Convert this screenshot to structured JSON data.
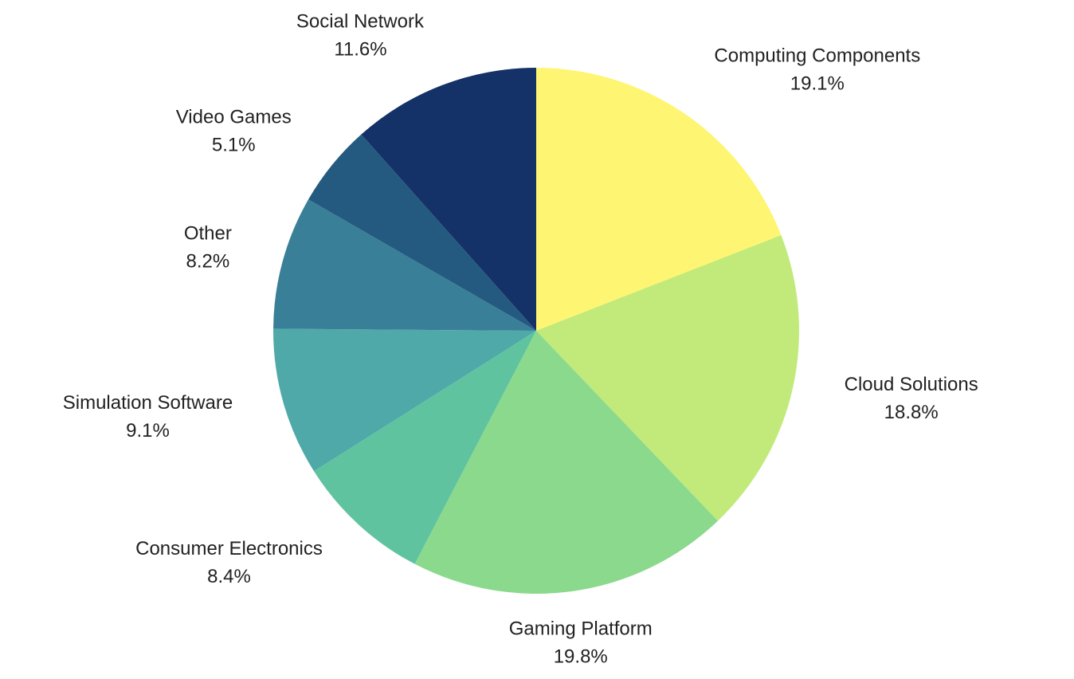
{
  "chart_data": {
    "type": "pie",
    "categories": [
      "Computing Components",
      "Cloud Solutions",
      "Gaming Platform",
      "Consumer Electronics",
      "Simulation Software",
      "Other",
      "Video Games",
      "Social Network"
    ],
    "values": [
      19.1,
      18.8,
      19.8,
      8.4,
      9.1,
      8.2,
      5.1,
      11.6
    ],
    "value_labels": [
      "19.1%",
      "18.8%",
      "19.8%",
      "8.4%",
      "9.1%",
      "8.2%",
      "5.1%",
      "11.6%"
    ],
    "colors": [
      "#fef572",
      "#c1ea7a",
      "#8bd98c",
      "#5fc3a0",
      "#4ea9a8",
      "#3a7f98",
      "#255a80",
      "#143267"
    ]
  }
}
